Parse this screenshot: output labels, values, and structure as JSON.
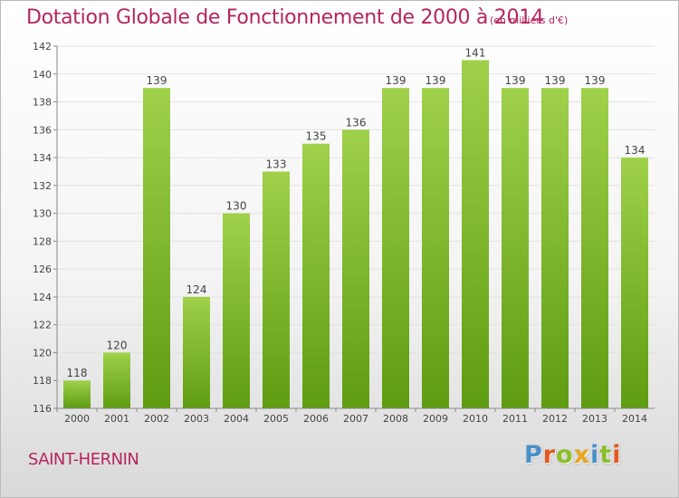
{
  "title": "Dotation Globale de Fonctionnement de 2000 à 2014",
  "subtitle": "(en milliers d'€)",
  "city": "SAINT-HERNIN",
  "logo": {
    "letters": [
      "P",
      "r",
      "o",
      "x",
      "i",
      "t",
      "i"
    ],
    "colors": [
      "#4a90c8",
      "#e2591f",
      "#8bbf2a",
      "#e7a71c",
      "#4a90c8",
      "#8bbf2a",
      "#e2591f"
    ]
  },
  "colors": {
    "bar_top": "#9fd14a",
    "bar_bottom": "#5e9c11",
    "title": "#b5245f"
  },
  "chart_data": {
    "type": "bar",
    "categories": [
      "2000",
      "2001",
      "2002",
      "2003",
      "2004",
      "2005",
      "2006",
      "2007",
      "2008",
      "2009",
      "2010",
      "2011",
      "2012",
      "2013",
      "2014"
    ],
    "values": [
      118,
      120,
      139,
      124,
      130,
      133,
      135,
      136,
      139,
      139,
      141,
      139,
      139,
      139,
      134
    ],
    "title": "Dotation Globale de Fonctionnement de 2000 à 2014",
    "xlabel": "",
    "ylabel": "",
    "ylim": [
      116,
      142
    ],
    "yticks": [
      116,
      118,
      120,
      122,
      124,
      126,
      128,
      130,
      132,
      134,
      136,
      138,
      140,
      142
    ],
    "grid": true,
    "legend": "none"
  }
}
